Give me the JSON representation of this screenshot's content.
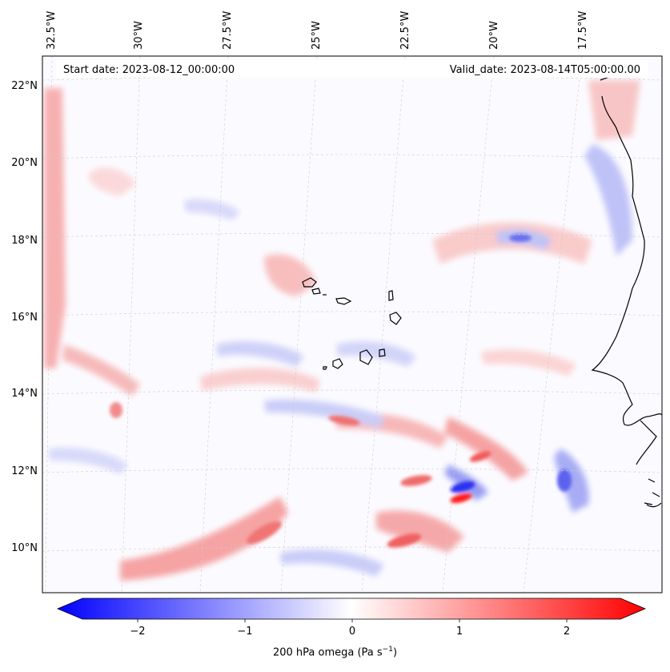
{
  "map": {
    "start_date": "Start date: 2023-08-12_00:00:00",
    "valid_date": "Valid_date: 2023-08-14T05:00:00.00",
    "lon_labels": [
      "32.5°W",
      "30°W",
      "27.5°W",
      "25°W",
      "22.5°W",
      "20°W",
      "17.5°W"
    ],
    "lat_labels": [
      "22°N",
      "20°N",
      "18°N",
      "16°N",
      "14°N",
      "12°N",
      "10°N"
    ],
    "field": "200 hPa omega",
    "colormap": "bwr"
  },
  "colorbar": {
    "tick_labels": [
      "−2",
      "−1",
      "0",
      "1",
      "2"
    ],
    "title_prefix": "200 hPa omega (Pa s",
    "title_sup": "−1",
    "title_suffix": ")",
    "range": [
      -2.75,
      2.75
    ],
    "colors": {
      "min": "#0000ff",
      "mid": "#ffffff",
      "max": "#ff0000"
    }
  }
}
